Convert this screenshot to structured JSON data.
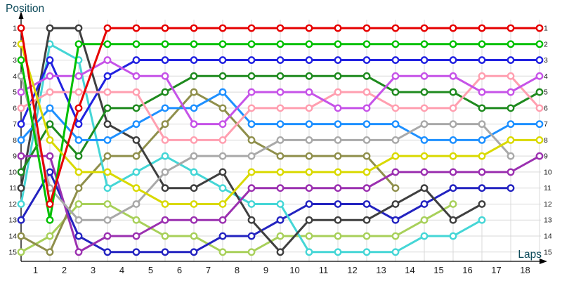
{
  "chart_data": {
    "type": "line",
    "title": "",
    "ylabel": "Position",
    "xlabel": "Laps",
    "x_tick_labels": [
      "1",
      "2",
      "3",
      "4",
      "5",
      "6",
      "7",
      "8",
      "9",
      "10",
      "11",
      "12",
      "13",
      "14",
      "15",
      "16",
      "17",
      "18"
    ],
    "y_tick_labels": [
      "1",
      "2",
      "3",
      "4",
      "5",
      "6",
      "7",
      "8",
      "9",
      "10",
      "11",
      "12",
      "13",
      "14",
      "15"
    ],
    "y_axis_sides": "both",
    "y_inverted": true,
    "ylim": [
      1,
      15
    ],
    "x_points_per_series": 19,
    "grid": true,
    "marker": "open-circle",
    "grid_color": "#d9d9d9",
    "axis_color": "#000000",
    "tick_color": "#1a1a1a",
    "axis_title_color": "#0d4a5a",
    "series": [
      {
        "name": "red",
        "color": "#e60000",
        "positions": [
          1,
          12,
          6,
          1,
          1,
          1,
          1,
          1,
          1,
          1,
          1,
          1,
          1,
          1,
          1,
          1,
          1,
          1,
          1
        ]
      },
      {
        "name": "yellow",
        "color": "#d9d900",
        "positions": [
          2,
          8,
          10,
          10,
          11,
          12,
          12,
          12,
          10,
          10,
          10,
          10,
          10,
          9,
          9,
          9,
          9,
          8,
          8
        ]
      },
      {
        "name": "green",
        "color": "#00c000",
        "positions": [
          3,
          13,
          2,
          2,
          2,
          2,
          2,
          2,
          2,
          2,
          2,
          2,
          2,
          2,
          2,
          2,
          2,
          2,
          2
        ]
      },
      {
        "name": "gray",
        "color": "#a9a9a9",
        "positions": [
          4,
          11,
          13,
          13,
          12,
          10,
          9,
          9,
          9,
          8,
          8,
          8,
          8,
          8,
          7,
          7,
          7,
          9,
          null
        ]
      },
      {
        "name": "violet",
        "color": "#c653e8",
        "positions": [
          5,
          4,
          4,
          3,
          4,
          4,
          7,
          7,
          5,
          5,
          5,
          6,
          6,
          4,
          4,
          4,
          5,
          5,
          4
        ]
      },
      {
        "name": "pink",
        "color": "#ff9fb0",
        "positions": [
          6,
          5,
          5,
          5,
          5,
          8,
          8,
          8,
          6,
          6,
          6,
          5,
          5,
          6,
          6,
          6,
          4,
          4,
          6
        ]
      },
      {
        "name": "blue",
        "color": "#2222e0",
        "positions": [
          7,
          3,
          7,
          4,
          3,
          3,
          3,
          3,
          3,
          3,
          3,
          3,
          3,
          3,
          3,
          3,
          3,
          3,
          3
        ]
      },
      {
        "name": "lightblue",
        "color": "#1e90ff",
        "positions": [
          8,
          6,
          8,
          8,
          7,
          6,
          6,
          5,
          7,
          7,
          7,
          7,
          7,
          7,
          8,
          8,
          8,
          7,
          7
        ]
      },
      {
        "name": "purple",
        "color": "#9b30b0",
        "positions": [
          9,
          9,
          15,
          14,
          14,
          13,
          13,
          13,
          11,
          11,
          11,
          11,
          11,
          10,
          10,
          10,
          10,
          10,
          9
        ]
      },
      {
        "name": "darkgreen",
        "color": "#1e8a1e",
        "positions": [
          10,
          7,
          9,
          6,
          6,
          5,
          4,
          4,
          4,
          4,
          4,
          4,
          4,
          5,
          5,
          5,
          6,
          6,
          5
        ]
      },
      {
        "name": "black",
        "color": "#3f3f3f",
        "positions": [
          11,
          1,
          1,
          7,
          8,
          11,
          11,
          10,
          13,
          15,
          13,
          13,
          13,
          12,
          11,
          13,
          12,
          null,
          null
        ]
      },
      {
        "name": "cyan",
        "color": "#45d6d6",
        "positions": [
          12,
          2,
          3,
          11,
          10,
          9,
          10,
          11,
          12,
          12,
          15,
          15,
          15,
          15,
          14,
          14,
          13,
          null,
          null
        ]
      },
      {
        "name": "navy",
        "color": "#2323c0",
        "positions": [
          13,
          10,
          14,
          15,
          15,
          15,
          15,
          14,
          14,
          13,
          12,
          12,
          12,
          13,
          12,
          11,
          11,
          11,
          null
        ]
      },
      {
        "name": "olive",
        "color": "#8f8f4b",
        "positions": [
          14,
          15,
          11,
          9,
          9,
          7,
          5,
          6,
          8,
          9,
          9,
          9,
          9,
          11,
          null,
          null,
          null,
          null,
          null
        ]
      },
      {
        "name": "lightgreen",
        "color": "#a8d05a",
        "positions": [
          15,
          14,
          12,
          12,
          13,
          14,
          14,
          15,
          15,
          14,
          14,
          14,
          14,
          14,
          13,
          12,
          null,
          null,
          null
        ]
      }
    ]
  }
}
